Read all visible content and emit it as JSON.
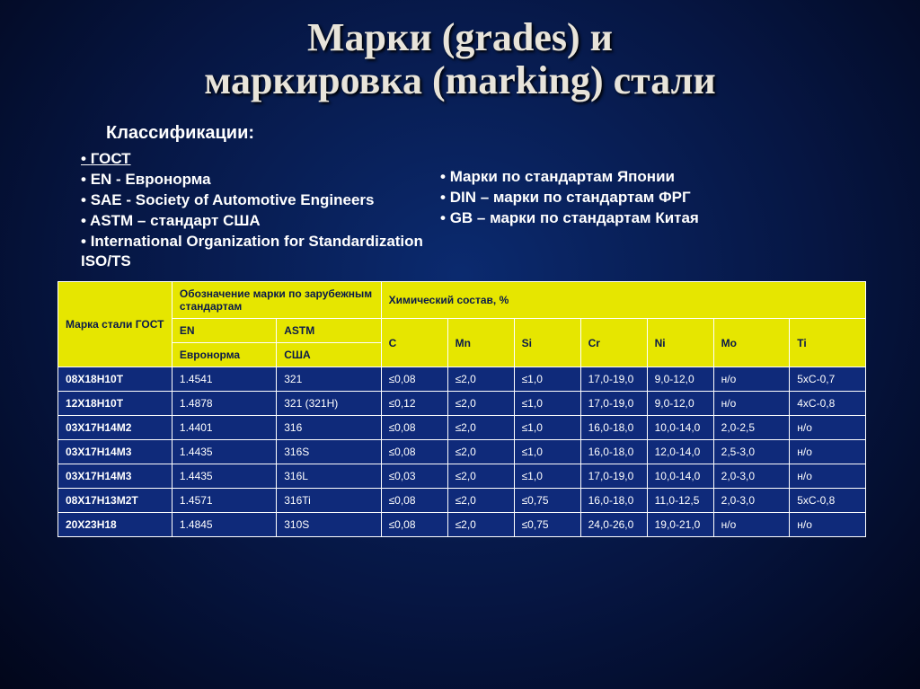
{
  "title_line1": "Марки (grades) и",
  "title_line2": "маркировка (marking) стали",
  "subtitle": "Классификации:",
  "left_list": [
    "ГОСТ",
    "EN - Евронорма",
    "SAE - Society of Automotive Engineers",
    "ASTM – стандарт США",
    "International Organization for Standardization ISO/TS"
  ],
  "right_list": [
    "Марки по стандартам Японии",
    "DIN – марки по стандартам ФРГ",
    "GB – марки по стандартам Китая"
  ],
  "table": {
    "header_bg": "#e6e600",
    "header_fg": "#0a1a4a",
    "data_bg": "#0f2a7a",
    "border_color": "#ffffff",
    "h_gost": "Марка стали ГОСТ",
    "h_foreign": "Обозначение марки по зарубежным стандартам",
    "h_chem": "Химический состав, %",
    "h_en": "EN",
    "h_astm": "ASTM",
    "h_en_sub": "Евронорма",
    "h_astm_sub": "США",
    "h_c": "C",
    "h_mn": "Mn",
    "h_si": "Si",
    "h_cr": "Cr",
    "h_ni": "Ni",
    "h_mo": "Mo",
    "h_ti": "Ti",
    "rows": [
      {
        "gost": "08Х18Н10Т",
        "en": "1.4541",
        "astm": "321",
        "c": "≤0,08",
        "mn": "≤2,0",
        "si": "≤1,0",
        "cr": "17,0-19,0",
        "ni": "9,0-12,0",
        "mo": "н/о",
        "ti": "5xC-0,7"
      },
      {
        "gost": "12Х18Н10Т",
        "en": "1.4878",
        "astm": "321 (321H)",
        "c": "≤0,12",
        "mn": "≤2,0",
        "si": "≤1,0",
        "cr": "17,0-19,0",
        "ni": "9,0-12,0",
        "mo": "н/о",
        "ti": "4xC-0,8"
      },
      {
        "gost": "03Х17Н14М2",
        "en": "1.4401",
        "astm": "316",
        "c": "≤0,08",
        "mn": "≤2,0",
        "si": "≤1,0",
        "cr": "16,0-18,0",
        "ni": "10,0-14,0",
        "mo": "2,0-2,5",
        "ti": "н/о"
      },
      {
        "gost": "03Х17Н14М3",
        "en": "1.4435",
        "astm": "316S",
        "c": "≤0,08",
        "mn": "≤2,0",
        "si": "≤1,0",
        "cr": "16,0-18,0",
        "ni": "12,0-14,0",
        "mo": "2,5-3,0",
        "ti": "н/о"
      },
      {
        "gost": "03Х17Н14М3",
        "en": "1.4435",
        "astm": "316L",
        "c": "≤0,03",
        "mn": "≤2,0",
        "si": "≤1,0",
        "cr": "17,0-19,0",
        "ni": "10,0-14,0",
        "mo": "2,0-3,0",
        "ti": "н/о"
      },
      {
        "gost": "08Х17Н13М2Т",
        "en": "1.4571",
        "astm": "316Ti",
        "c": "≤0,08",
        "mn": "≤2,0",
        "si": "≤0,75",
        "cr": "16,0-18,0",
        "ni": "11,0-12,5",
        "mo": "2,0-3,0",
        "ti": "5xC-0,8"
      },
      {
        "gost": "20Х23Н18",
        "en": "1.4845",
        "astm": "310S",
        "c": "≤0,08",
        "mn": "≤2,0",
        "si": "≤0,75",
        "cr": "24,0-26,0",
        "ni": "19,0-21,0",
        "mo": "н/о",
        "ti": "н/о"
      }
    ]
  }
}
